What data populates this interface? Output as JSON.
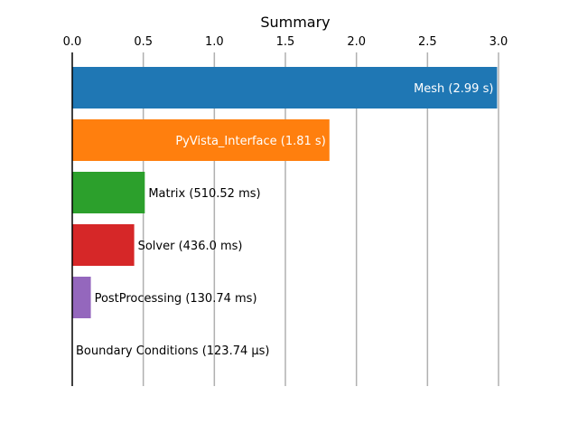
{
  "chart_data": {
    "type": "bar",
    "orientation": "horizontal",
    "title": "Summary",
    "xaxis_position": "top",
    "xlim": [
      0,
      3.0
    ],
    "xticks": [
      0.0,
      0.5,
      1.0,
      1.5,
      2.0,
      2.5,
      3.0
    ],
    "xtick_labels": [
      "0.0",
      "0.5",
      "1.0",
      "1.5",
      "2.0",
      "2.5",
      "3.0"
    ],
    "grid": "vertical",
    "legend": "none",
    "categories": [
      "Mesh",
      "PyVista_Interface",
      "Matrix",
      "Solver",
      "PostProcessing",
      "Boundary Conditions"
    ],
    "values": [
      2.99,
      1.81,
      0.51052,
      0.436,
      0.13074,
      0.00012374
    ],
    "labels": [
      "Mesh (2.99 s)",
      "PyVista_Interface (1.81 s)",
      "Matrix (510.52 ms)",
      "Solver (436.0 ms)",
      "PostProcessing (130.74 ms)",
      "Boundary Conditions (123.74 µs)"
    ],
    "label_inside": [
      true,
      true,
      false,
      false,
      false,
      false
    ],
    "colors": [
      "#1f77b4",
      "#ff7f0e",
      "#2ca02c",
      "#d62728",
      "#9467bd",
      "#8c564b"
    ]
  }
}
